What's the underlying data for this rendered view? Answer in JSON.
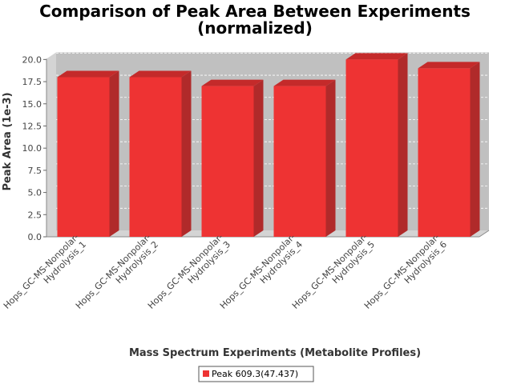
{
  "chart_data": {
    "type": "bar",
    "title_line1": "Comparison of Peak Area Between Experiments",
    "title_line2": "(normalized)",
    "xlabel": "Mass Spectrum Experiments (Metabolite Profiles)",
    "ylabel": "Peak Area (1e-3)",
    "ylim": [
      0,
      20.8
    ],
    "yticks": [
      "0.0",
      "2.5",
      "5.0",
      "7.5",
      "10.0",
      "12.5",
      "15.0",
      "17.5",
      "20.0"
    ],
    "categories": [
      "Hops_GC-MS-Nonpolar-Hydrolysis_1",
      "Hops_GC-MS-Nonpolar-Hydrolysis_2",
      "Hops_GC-MS-Nonpolar-Hydrolysis_3",
      "Hops_GC-MS-Nonpolar-Hydrolysis_4",
      "Hops_GC-MS-Nonpolar-Hydrolysis_5",
      "Hops_GC-MS-Nonpolar-Hydrolysis_6"
    ],
    "category_lines": [
      [
        "Hops_GC-MS-Nonpolar-",
        "Hydrolysis_1"
      ],
      [
        "Hops_GC-MS-Nonpolar-",
        "Hydrolysis_2"
      ],
      [
        "Hops_GC-MS-Nonpolar-",
        "Hydrolysis_3"
      ],
      [
        "Hops_GC-MS-Nonpolar-",
        "Hydrolysis_4"
      ],
      [
        "Hops_GC-MS-Nonpolar-",
        "Hydrolysis_5"
      ],
      [
        "Hops_GC-MS-Nonpolar-",
        "Hydrolysis_6"
      ]
    ],
    "series": [
      {
        "name": "Peak 609.3(47.437)",
        "values": [
          18.0,
          18.0,
          17.0,
          17.0,
          20.0,
          19.0
        ]
      }
    ],
    "legend_position": "bottom",
    "grid": true,
    "colors": {
      "bar": "#ee3333",
      "bar_top": "#c42a2a",
      "bar_side": "#b02a2a",
      "plot_bg": "#c0c0c0",
      "wall": "#d4d4d4",
      "grid": "#ffffff"
    }
  }
}
